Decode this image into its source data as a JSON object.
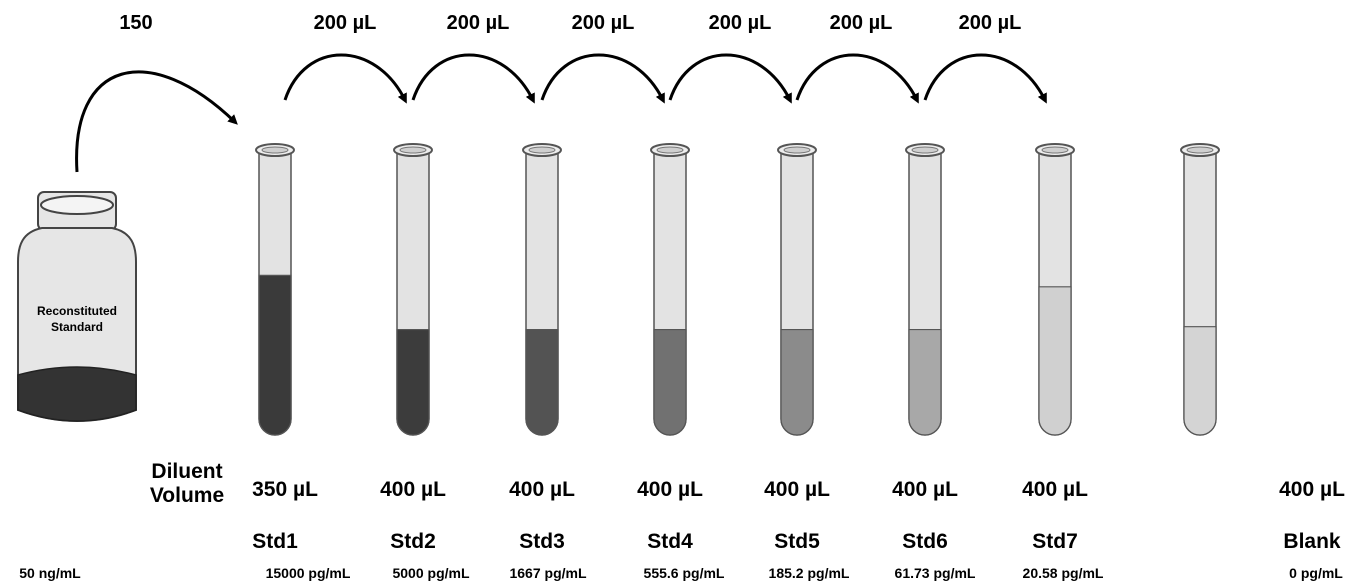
{
  "stock": {
    "transfer_volume": "150",
    "bottle_label_line1": "Reconstituted",
    "bottle_label_line2": "Standard",
    "concentration": "50 ng/mL"
  },
  "transfer_volumes": [
    "200 µL",
    "200 µL",
    "200 µL",
    "200 µL",
    "200 µL",
    "200 µL"
  ],
  "diluent_heading": {
    "line1": "Diluent",
    "line2": "Volume"
  },
  "tubes": [
    {
      "name": "Std1",
      "diluent": "350 µL",
      "concentration": "15000 pg/mL",
      "fill_color": "#3a3a3a",
      "fill_level": 0.56
    },
    {
      "name": "Std2",
      "diluent": "400 µL",
      "concentration": "5000 pg/mL",
      "fill_color": "#3c3c3c",
      "fill_level": 0.37
    },
    {
      "name": "Std3",
      "diluent": "400 µL",
      "concentration": "1667 pg/mL",
      "fill_color": "#535353",
      "fill_level": 0.37
    },
    {
      "name": "Std4",
      "diluent": "400 µL",
      "concentration": "555.6 pg/mL",
      "fill_color": "#717171",
      "fill_level": 0.37
    },
    {
      "name": "Std5",
      "diluent": "400 µL",
      "concentration": "185.2 pg/mL",
      "fill_color": "#8b8b8b",
      "fill_level": 0.37
    },
    {
      "name": "Std6",
      "diluent": "400 µL",
      "concentration": "61.73 pg/mL",
      "fill_color": "#a8a8a8",
      "fill_level": 0.37
    },
    {
      "name": "Std7",
      "diluent": "400 µL",
      "concentration": "20.58 pg/mL",
      "fill_color": "#d0d0d0",
      "fill_level": 0.52
    },
    {
      "name": "Blank",
      "diluent": "400 µL",
      "concentration": "0 pg/mL",
      "fill_color": "#d4d4d4",
      "fill_level": 0.38
    }
  ],
  "colors": {
    "tube_empty": "#e3e3e3",
    "tube_outline": "#555555",
    "stock_liquid": "#333333",
    "bottle_glass": "#e6e6e6"
  }
}
